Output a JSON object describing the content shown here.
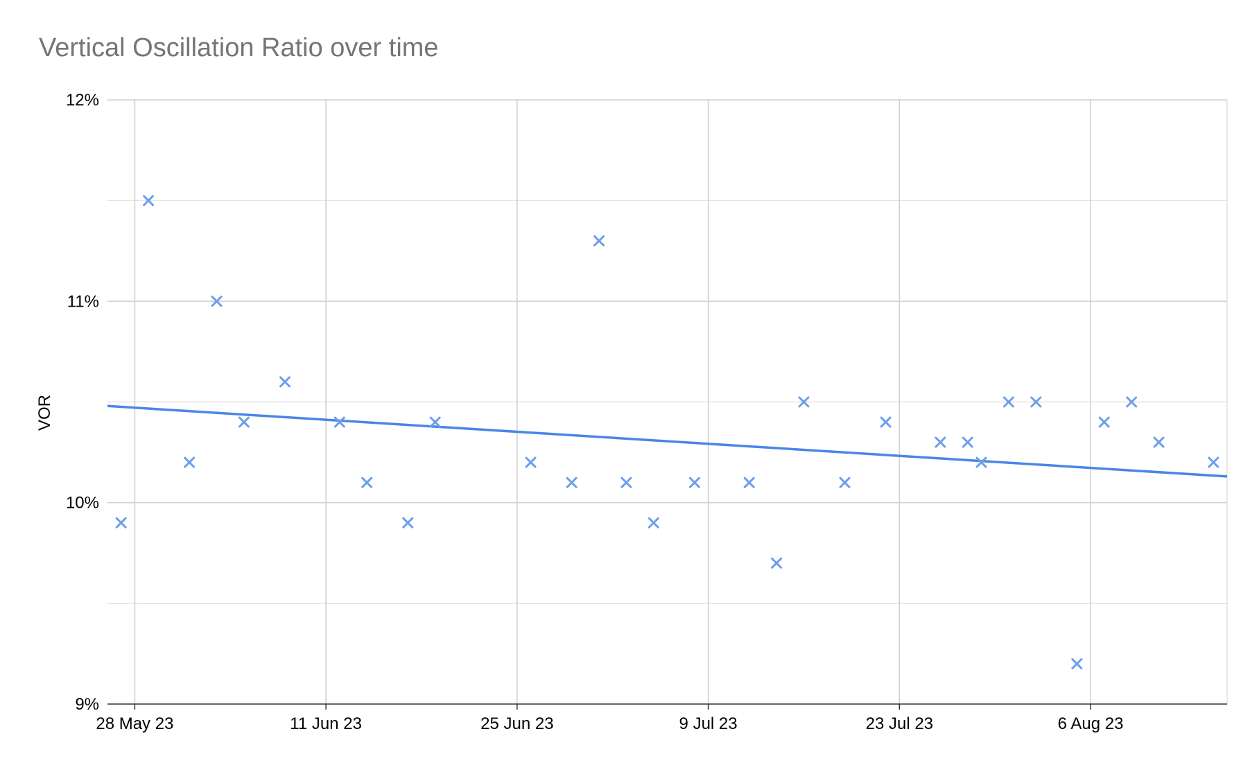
{
  "chart_data": {
    "type": "scatter",
    "title": "Vertical Oscillation Ratio over time",
    "xlabel": "",
    "ylabel": "VOR",
    "ylim": [
      9,
      12
    ],
    "xlim": [
      "2023-05-26",
      "2023-08-16"
    ],
    "y_ticks": [
      "9%",
      "10%",
      "11%",
      "12%"
    ],
    "x_ticks": [
      {
        "date": "2023-05-28",
        "label": "28 May 23"
      },
      {
        "date": "2023-06-11",
        "label": "11 Jun 23"
      },
      {
        "date": "2023-06-25",
        "label": "25 Jun 23"
      },
      {
        "date": "2023-07-09",
        "label": "9 Jul 23"
      },
      {
        "date": "2023-07-23",
        "label": "23 Jul 23"
      },
      {
        "date": "2023-08-06",
        "label": "6 Aug 23"
      }
    ],
    "grid": true,
    "marker": "x",
    "marker_color": "#6d9eeb",
    "trendline_color": "#4a86e8",
    "series": [
      {
        "points": [
          {
            "x": "2023-05-27",
            "y": 9.9
          },
          {
            "x": "2023-05-29",
            "y": 11.5
          },
          {
            "x": "2023-06-01",
            "y": 10.2
          },
          {
            "x": "2023-06-03",
            "y": 11.0
          },
          {
            "x": "2023-06-05",
            "y": 10.4
          },
          {
            "x": "2023-06-08",
            "y": 10.6
          },
          {
            "x": "2023-06-12",
            "y": 10.4
          },
          {
            "x": "2023-06-14",
            "y": 10.1
          },
          {
            "x": "2023-06-17",
            "y": 9.9
          },
          {
            "x": "2023-06-19",
            "y": 10.4
          },
          {
            "x": "2023-06-26",
            "y": 10.2
          },
          {
            "x": "2023-06-29",
            "y": 10.1
          },
          {
            "x": "2023-07-01",
            "y": 11.3
          },
          {
            "x": "2023-07-03",
            "y": 10.1
          },
          {
            "x": "2023-07-05",
            "y": 9.9
          },
          {
            "x": "2023-07-08",
            "y": 10.1
          },
          {
            "x": "2023-07-12",
            "y": 10.1
          },
          {
            "x": "2023-07-14",
            "y": 9.7
          },
          {
            "x": "2023-07-16",
            "y": 10.5
          },
          {
            "x": "2023-07-19",
            "y": 10.1
          },
          {
            "x": "2023-07-22",
            "y": 10.4
          },
          {
            "x": "2023-07-26",
            "y": 10.3
          },
          {
            "x": "2023-07-28",
            "y": 10.3
          },
          {
            "x": "2023-07-29",
            "y": 10.2
          },
          {
            "x": "2023-07-31",
            "y": 10.5
          },
          {
            "x": "2023-08-02",
            "y": 10.5
          },
          {
            "x": "2023-08-05",
            "y": 9.2
          },
          {
            "x": "2023-08-07",
            "y": 10.4
          },
          {
            "x": "2023-08-09",
            "y": 10.5
          },
          {
            "x": "2023-08-11",
            "y": 10.3
          },
          {
            "x": "2023-08-15",
            "y": 10.2
          }
        ]
      }
    ],
    "trendline": {
      "start": {
        "x": "2023-05-26",
        "y": 10.48
      },
      "end": {
        "x": "2023-08-16",
        "y": 10.13
      }
    }
  }
}
